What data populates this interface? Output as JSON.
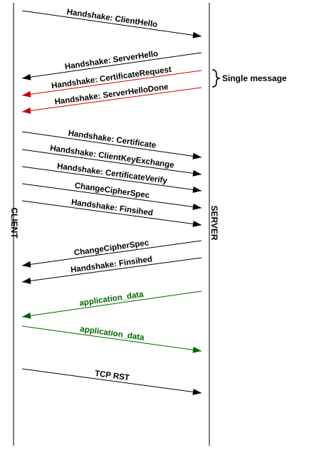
{
  "client_label": "CLIENT",
  "server_label": "SERVER",
  "note": {
    "text": "Single message"
  },
  "colors": {
    "default": "#000000",
    "red": "#cc0000",
    "green": "#006600"
  },
  "messages": [
    {
      "label": "Handshake: ClientHello",
      "direction": "client-to-server",
      "color": "default"
    },
    {
      "label": "Handshake: ServerHello",
      "direction": "server-to-client",
      "color": "default"
    },
    {
      "label": "Handshake: CertificateRequest",
      "direction": "server-to-client",
      "color": "red"
    },
    {
      "label": "Handshake: ServerHelloDone",
      "direction": "server-to-client",
      "color": "red"
    },
    {
      "label": "Handshake: Certificate",
      "direction": "client-to-server",
      "color": "default"
    },
    {
      "label": "Handshake: ClientKeyExchange",
      "direction": "client-to-server",
      "color": "default"
    },
    {
      "label": "Handshake: CertificateVerify",
      "direction": "client-to-server",
      "color": "default"
    },
    {
      "label": "ChangeCipherSpec",
      "direction": "client-to-server",
      "color": "default"
    },
    {
      "label": "Handshake: Finsihed",
      "direction": "client-to-server",
      "color": "default"
    },
    {
      "label": "ChangeCipherSpec",
      "direction": "server-to-client",
      "color": "default"
    },
    {
      "label": "Handshake: Finsihed",
      "direction": "server-to-client",
      "color": "default"
    },
    {
      "label": "application_data",
      "direction": "server-to-client",
      "color": "green"
    },
    {
      "label": "application_data",
      "direction": "client-to-server",
      "color": "green"
    },
    {
      "label": "TCP RST",
      "direction": "client-to-server",
      "color": "default"
    }
  ]
}
